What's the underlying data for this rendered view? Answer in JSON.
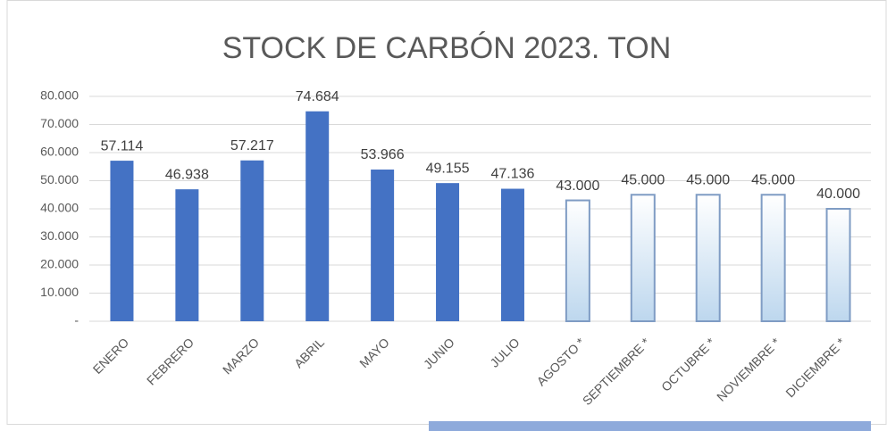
{
  "chart_data": {
    "type": "bar",
    "title": "STOCK DE CARBÓN 2023. TON",
    "categories": [
      "ENERO",
      "FEBRERO",
      "MARZO",
      "ABRIL",
      "MAYO",
      "JUNIO",
      "JULIO",
      "AGOSTO *",
      "SEPTIEMBRE *",
      "OCTUBRE *",
      "NOVIEMBRE *",
      "DICIEMBRE *"
    ],
    "values": [
      57114,
      46938,
      57217,
      74684,
      53966,
      49155,
      47136,
      43000,
      45000,
      45000,
      45000,
      40000
    ],
    "value_labels": [
      "57.114",
      "46.938",
      "57.217",
      "74.684",
      "53.966",
      "49.155",
      "47.136",
      "43.000",
      "45.000",
      "45.000",
      "45.000",
      "40.000"
    ],
    "colors": [
      "#4472c4",
      "#4472c4",
      "#4472c4",
      "#4472c4",
      "#4472c4",
      "#4472c4",
      "#4472c4",
      "#bdd7ee",
      "#bdd7ee",
      "#bdd7ee",
      "#bdd7ee",
      "#bdd7ee"
    ],
    "ylim": [
      0,
      80000
    ],
    "yticks": [
      {
        "value": 0,
        "label": "-"
      },
      {
        "value": 10000,
        "label": "10.000"
      },
      {
        "value": 20000,
        "label": "20.000"
      },
      {
        "value": 30000,
        "label": "30.000"
      },
      {
        "value": 40000,
        "label": "40.000"
      },
      {
        "value": 50000,
        "label": "50.000"
      },
      {
        "value": 60000,
        "label": "60.000"
      },
      {
        "value": 70000,
        "label": "70.000"
      },
      {
        "value": 80000,
        "label": "80.000"
      }
    ],
    "grid": true
  }
}
